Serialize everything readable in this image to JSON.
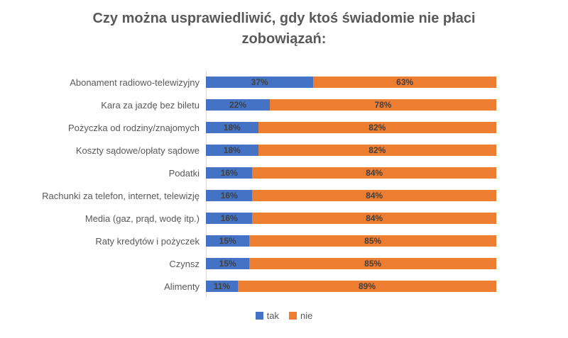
{
  "title": "Czy można usprawiedliwić, gdy ktoś świadomie nie płaci zobowiązań:",
  "colors": {
    "tak": "#4472C4",
    "nie": "#ED7D31",
    "title_text": "#595959",
    "category_text": "#595959",
    "data_label_text": "#404040",
    "axis_line": "#D9D9D9"
  },
  "legend": {
    "position": "bottom",
    "items": [
      {
        "label": "tak",
        "color": "#4472C4"
      },
      {
        "label": "nie",
        "color": "#ED7D31"
      }
    ]
  },
  "chart_data": {
    "type": "bar",
    "orientation": "horizontal",
    "stacked": true,
    "title": "Czy można usprawiedliwić, gdy ktoś świadomie nie płaci zobowiązań:",
    "xlabel": "",
    "ylabel": "",
    "xlim": [
      0,
      100
    ],
    "grid": false,
    "value_suffix": "%",
    "legend_position": "bottom",
    "categories": [
      "Abonament radiowo-telewizyjny",
      "Kara za jazdę bez biletu",
      "Pożyczka od rodziny/znajomych",
      "Koszty sądowe/opłaty sądowe",
      "Podatki",
      "Rachunki za telefon, internet, telewizję",
      "Media (gaz, prąd, wodę itp.)",
      "Raty kredytów i pożyczek",
      "Czynsz",
      "Alimenty"
    ],
    "series": [
      {
        "name": "tak",
        "color": "#4472C4",
        "values": [
          37,
          22,
          18,
          18,
          16,
          16,
          16,
          15,
          15,
          11
        ]
      },
      {
        "name": "nie",
        "color": "#ED7D31",
        "values": [
          63,
          78,
          82,
          82,
          84,
          84,
          84,
          85,
          85,
          89
        ]
      }
    ]
  }
}
